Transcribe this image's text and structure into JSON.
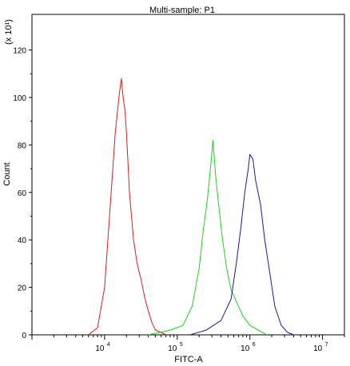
{
  "chart_data": {
    "type": "line",
    "title": "Multi-sample: P1",
    "xlabel": "FITC-A",
    "ylabel": "Count",
    "y_multiplier_label": "(x 10¹)",
    "x_scale": "log",
    "xlim": [
      1000,
      20000000
    ],
    "ylim": [
      0,
      135
    ],
    "x_ticks": [
      {
        "value": 10000,
        "base": "10",
        "exp": "4"
      },
      {
        "value": 100000,
        "base": "10",
        "exp": "5"
      },
      {
        "value": 1000000,
        "base": "10",
        "exp": "6"
      },
      {
        "value": 10000000,
        "base": "10",
        "exp": "7"
      }
    ],
    "y_ticks": [
      0,
      20,
      40,
      60,
      80,
      100,
      120
    ],
    "grid": false,
    "legend": "none",
    "series": [
      {
        "color": "#cc2222",
        "x": [
          6000,
          8000,
          10000,
          12000,
          14000,
          16000,
          17000,
          18000,
          19000,
          20000,
          22000,
          25000,
          28000,
          32000,
          36000,
          40000,
          45000,
          50000,
          60000,
          70000
        ],
        "y": [
          0,
          3,
          20,
          55,
          85,
          102,
          108,
          100,
          95,
          85,
          60,
          40,
          30,
          23,
          15,
          10,
          5,
          2,
          1,
          0
        ]
      },
      {
        "color": "#22cc22",
        "x": [
          40000,
          80000,
          120000,
          160000,
          200000,
          230000,
          260000,
          290000,
          310000,
          340000,
          380000,
          420000,
          480000,
          550000,
          650000,
          800000,
          1000000,
          1300000,
          1700000
        ],
        "y": [
          0,
          2,
          4,
          12,
          28,
          45,
          57,
          72,
          82,
          66,
          52,
          40,
          28,
          19,
          14,
          8,
          4,
          2,
          0
        ]
      },
      {
        "color": "#1a1a8c",
        "x": [
          150000,
          250000,
          400000,
          550000,
          650000,
          750000,
          850000,
          950000,
          1000000,
          1100000,
          1200000,
          1400000,
          1600000,
          1900000,
          2200000,
          2700000,
          3300000,
          4000000
        ],
        "y": [
          0,
          2,
          6,
          15,
          30,
          45,
          60,
          70,
          76,
          74,
          65,
          55,
          40,
          25,
          12,
          4,
          1,
          0
        ]
      }
    ]
  }
}
